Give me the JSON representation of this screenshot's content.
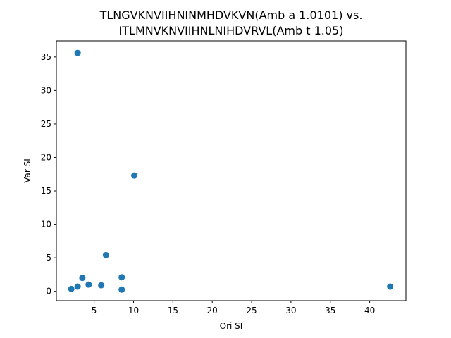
{
  "chart_data": {
    "type": "scatter",
    "title_line1": "TLNGVKNVIIHNINMHDVKVN(Amb a 1.0101) vs.",
    "title_line2": "ITLMNVKNVIIHNLNIHDVRVL(Amb t 1.05)",
    "xlabel": "Ori SI",
    "ylabel": "Var SI",
    "xlim": [
      0.2,
      44.6
    ],
    "ylim": [
      -1.4,
      37.4
    ],
    "xticks": [
      5,
      10,
      15,
      20,
      25,
      30,
      35,
      40
    ],
    "yticks": [
      0,
      5,
      10,
      15,
      20,
      25,
      30,
      35
    ],
    "marker_color": "#1f77b4",
    "grid": false,
    "points": [
      {
        "x": 2.9,
        "y": 35.6
      },
      {
        "x": 10.1,
        "y": 17.3
      },
      {
        "x": 6.5,
        "y": 5.4
      },
      {
        "x": 3.5,
        "y": 2.0
      },
      {
        "x": 8.5,
        "y": 2.1
      },
      {
        "x": 4.3,
        "y": 1.0
      },
      {
        "x": 5.9,
        "y": 0.9
      },
      {
        "x": 2.9,
        "y": 0.7
      },
      {
        "x": 2.1,
        "y": 0.35
      },
      {
        "x": 8.5,
        "y": 0.25
      },
      {
        "x": 42.6,
        "y": 0.7
      }
    ]
  }
}
